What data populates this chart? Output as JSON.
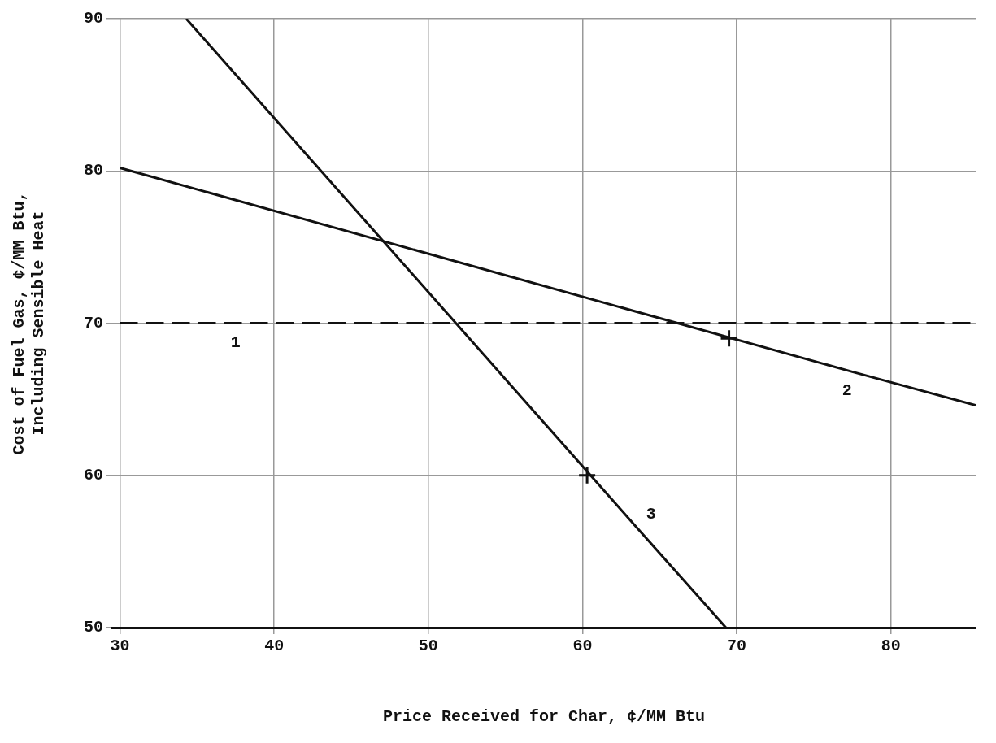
{
  "chart_data": {
    "type": "line",
    "xlabel": "Price Received for Char, ¢/MM Btu",
    "ylabel": "Cost of Fuel Gas, ¢/MM Btu,\nIncluding Sensible Heat",
    "series": [
      {
        "name": "1",
        "color": "#111111",
        "line_style": "dashed",
        "x": [
          30,
          37.5,
          85.5
        ],
        "values": [
          70,
          70,
          70
        ]
      },
      {
        "name": "2",
        "color": "#111111",
        "line_style": "solid",
        "x": [
          30,
          77.5,
          85.5
        ],
        "values": [
          80.2,
          66.8,
          64.6
        ]
      },
      {
        "name": "3",
        "color": "#111111",
        "line_style": "solid",
        "x": [
          34.3,
          63.5,
          69.3
        ],
        "values": [
          90,
          56.6,
          50
        ]
      },
      {
        "type": "scatter",
        "color": "#111111",
        "marker": "cross",
        "x": [
          69.5,
          60.3
        ],
        "values": [
          69,
          60
        ]
      }
    ],
    "xlim": [
      29.5,
      85.5
    ],
    "xticks": [
      30,
      40,
      50,
      60,
      70,
      80
    ],
    "ylim": [
      50,
      90
    ],
    "yticks": [
      50,
      60,
      70,
      80,
      90
    ],
    "grid": true,
    "legend": false
  }
}
